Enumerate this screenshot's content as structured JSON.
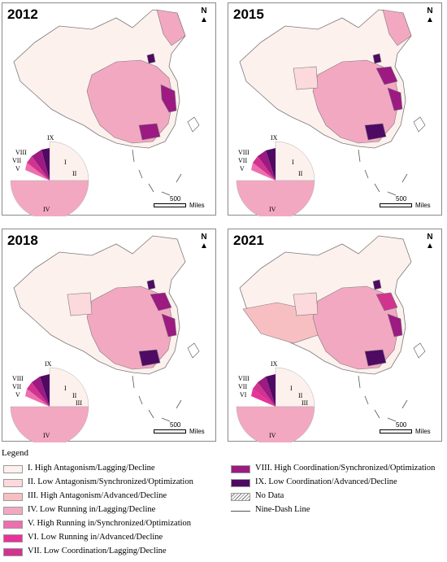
{
  "panels": [
    {
      "year": "2012",
      "north": "N",
      "scale_value": "500",
      "scale_unit": "Miles"
    },
    {
      "year": "2015",
      "north": "N",
      "scale_value": "500",
      "scale_unit": "Miles"
    },
    {
      "year": "2018",
      "north": "N",
      "scale_value": "500",
      "scale_unit": "Miles"
    },
    {
      "year": "2021",
      "north": "N",
      "scale_value": "500",
      "scale_unit": "Miles"
    }
  ],
  "colors": {
    "I": "#fdf1ee",
    "II": "#fbd9dc",
    "III": "#f8bfc3",
    "IV": "#f3a8c2",
    "V": "#ec6fae",
    "VI": "#e8339a",
    "VII": "#d1338f",
    "VIII": "#9c1a82",
    "IX": "#4f0a63",
    "nodata": "#ffffff",
    "outline": "#7a7a7a"
  },
  "pies": [
    {
      "labels": [
        "IX",
        "VIII",
        "VII",
        "V",
        "I",
        "II",
        "IV"
      ]
    },
    {
      "labels": [
        "IX",
        "VIII",
        "VII",
        "V",
        "I",
        "II",
        "IV"
      ]
    },
    {
      "labels": [
        "IX",
        "VIII",
        "VII",
        "V",
        "I",
        "II",
        "III",
        "IV"
      ]
    },
    {
      "labels": [
        "IX",
        "VIII",
        "VII",
        "VI",
        "I",
        "II",
        "III",
        "IV"
      ]
    }
  ],
  "legend": {
    "title": "Legend",
    "items": [
      {
        "key": "I",
        "label": "I. High Antagonism/Lagging/Decline"
      },
      {
        "key": "II",
        "label": "II. Low Antagonism/Synchronized/Optimization"
      },
      {
        "key": "III",
        "label": "III. High Antagonism/Advanced/Decline"
      },
      {
        "key": "IV",
        "label": "IV. Low Running in/Lagging/Decline"
      },
      {
        "key": "V",
        "label": "V. High Running in/Synchronized/Optimization"
      },
      {
        "key": "VI",
        "label": "VI. Low Running in/Advanced/Decline"
      },
      {
        "key": "VII",
        "label": "VII. Low Coordination/Lagging/Decline"
      },
      {
        "key": "VIII",
        "label": "VIII. High Coordination/Synchronized/Optimization"
      },
      {
        "key": "IX",
        "label": "IX. Low Coordination/Advanced/Decline"
      },
      {
        "key": "nodata",
        "label": "No Data"
      },
      {
        "key": "line",
        "label": "Nine-Dash Line"
      }
    ]
  }
}
